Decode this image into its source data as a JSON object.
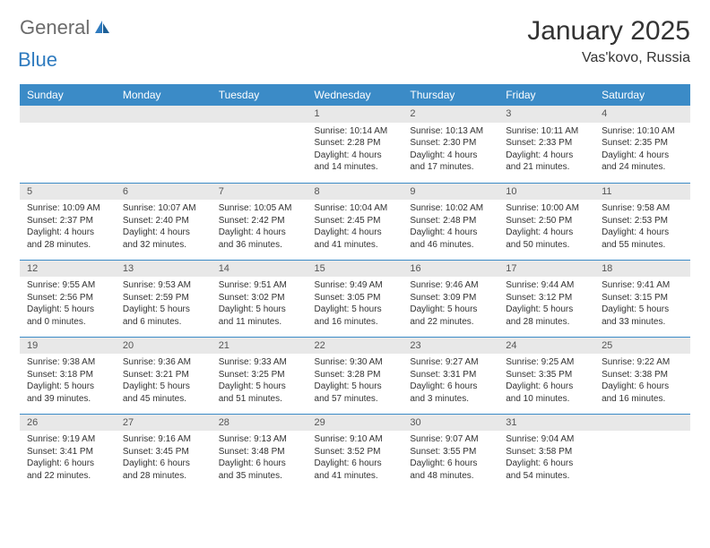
{
  "logo": {
    "word1": "General",
    "word2": "Blue"
  },
  "title": "January 2025",
  "location": "Vas'kovo, Russia",
  "colors": {
    "header_bg": "#3b8bc7",
    "header_text": "#ffffff",
    "daynum_bg": "#e8e8e8",
    "row_divider": "#3b8bc7",
    "text": "#333333",
    "logo_gray": "#6b6b6b",
    "logo_blue": "#2f7bbf"
  },
  "weekdays": [
    "Sunday",
    "Monday",
    "Tuesday",
    "Wednesday",
    "Thursday",
    "Friday",
    "Saturday"
  ],
  "weeks": [
    [
      null,
      null,
      null,
      {
        "n": "1",
        "sr": "Sunrise: 10:14 AM",
        "ss": "Sunset: 2:28 PM",
        "d1": "Daylight: 4 hours",
        "d2": "and 14 minutes."
      },
      {
        "n": "2",
        "sr": "Sunrise: 10:13 AM",
        "ss": "Sunset: 2:30 PM",
        "d1": "Daylight: 4 hours",
        "d2": "and 17 minutes."
      },
      {
        "n": "3",
        "sr": "Sunrise: 10:11 AM",
        "ss": "Sunset: 2:33 PM",
        "d1": "Daylight: 4 hours",
        "d2": "and 21 minutes."
      },
      {
        "n": "4",
        "sr": "Sunrise: 10:10 AM",
        "ss": "Sunset: 2:35 PM",
        "d1": "Daylight: 4 hours",
        "d2": "and 24 minutes."
      }
    ],
    [
      {
        "n": "5",
        "sr": "Sunrise: 10:09 AM",
        "ss": "Sunset: 2:37 PM",
        "d1": "Daylight: 4 hours",
        "d2": "and 28 minutes."
      },
      {
        "n": "6",
        "sr": "Sunrise: 10:07 AM",
        "ss": "Sunset: 2:40 PM",
        "d1": "Daylight: 4 hours",
        "d2": "and 32 minutes."
      },
      {
        "n": "7",
        "sr": "Sunrise: 10:05 AM",
        "ss": "Sunset: 2:42 PM",
        "d1": "Daylight: 4 hours",
        "d2": "and 36 minutes."
      },
      {
        "n": "8",
        "sr": "Sunrise: 10:04 AM",
        "ss": "Sunset: 2:45 PM",
        "d1": "Daylight: 4 hours",
        "d2": "and 41 minutes."
      },
      {
        "n": "9",
        "sr": "Sunrise: 10:02 AM",
        "ss": "Sunset: 2:48 PM",
        "d1": "Daylight: 4 hours",
        "d2": "and 46 minutes."
      },
      {
        "n": "10",
        "sr": "Sunrise: 10:00 AM",
        "ss": "Sunset: 2:50 PM",
        "d1": "Daylight: 4 hours",
        "d2": "and 50 minutes."
      },
      {
        "n": "11",
        "sr": "Sunrise: 9:58 AM",
        "ss": "Sunset: 2:53 PM",
        "d1": "Daylight: 4 hours",
        "d2": "and 55 minutes."
      }
    ],
    [
      {
        "n": "12",
        "sr": "Sunrise: 9:55 AM",
        "ss": "Sunset: 2:56 PM",
        "d1": "Daylight: 5 hours",
        "d2": "and 0 minutes."
      },
      {
        "n": "13",
        "sr": "Sunrise: 9:53 AM",
        "ss": "Sunset: 2:59 PM",
        "d1": "Daylight: 5 hours",
        "d2": "and 6 minutes."
      },
      {
        "n": "14",
        "sr": "Sunrise: 9:51 AM",
        "ss": "Sunset: 3:02 PM",
        "d1": "Daylight: 5 hours",
        "d2": "and 11 minutes."
      },
      {
        "n": "15",
        "sr": "Sunrise: 9:49 AM",
        "ss": "Sunset: 3:05 PM",
        "d1": "Daylight: 5 hours",
        "d2": "and 16 minutes."
      },
      {
        "n": "16",
        "sr": "Sunrise: 9:46 AM",
        "ss": "Sunset: 3:09 PM",
        "d1": "Daylight: 5 hours",
        "d2": "and 22 minutes."
      },
      {
        "n": "17",
        "sr": "Sunrise: 9:44 AM",
        "ss": "Sunset: 3:12 PM",
        "d1": "Daylight: 5 hours",
        "d2": "and 28 minutes."
      },
      {
        "n": "18",
        "sr": "Sunrise: 9:41 AM",
        "ss": "Sunset: 3:15 PM",
        "d1": "Daylight: 5 hours",
        "d2": "and 33 minutes."
      }
    ],
    [
      {
        "n": "19",
        "sr": "Sunrise: 9:38 AM",
        "ss": "Sunset: 3:18 PM",
        "d1": "Daylight: 5 hours",
        "d2": "and 39 minutes."
      },
      {
        "n": "20",
        "sr": "Sunrise: 9:36 AM",
        "ss": "Sunset: 3:21 PM",
        "d1": "Daylight: 5 hours",
        "d2": "and 45 minutes."
      },
      {
        "n": "21",
        "sr": "Sunrise: 9:33 AM",
        "ss": "Sunset: 3:25 PM",
        "d1": "Daylight: 5 hours",
        "d2": "and 51 minutes."
      },
      {
        "n": "22",
        "sr": "Sunrise: 9:30 AM",
        "ss": "Sunset: 3:28 PM",
        "d1": "Daylight: 5 hours",
        "d2": "and 57 minutes."
      },
      {
        "n": "23",
        "sr": "Sunrise: 9:27 AM",
        "ss": "Sunset: 3:31 PM",
        "d1": "Daylight: 6 hours",
        "d2": "and 3 minutes."
      },
      {
        "n": "24",
        "sr": "Sunrise: 9:25 AM",
        "ss": "Sunset: 3:35 PM",
        "d1": "Daylight: 6 hours",
        "d2": "and 10 minutes."
      },
      {
        "n": "25",
        "sr": "Sunrise: 9:22 AM",
        "ss": "Sunset: 3:38 PM",
        "d1": "Daylight: 6 hours",
        "d2": "and 16 minutes."
      }
    ],
    [
      {
        "n": "26",
        "sr": "Sunrise: 9:19 AM",
        "ss": "Sunset: 3:41 PM",
        "d1": "Daylight: 6 hours",
        "d2": "and 22 minutes."
      },
      {
        "n": "27",
        "sr": "Sunrise: 9:16 AM",
        "ss": "Sunset: 3:45 PM",
        "d1": "Daylight: 6 hours",
        "d2": "and 28 minutes."
      },
      {
        "n": "28",
        "sr": "Sunrise: 9:13 AM",
        "ss": "Sunset: 3:48 PM",
        "d1": "Daylight: 6 hours",
        "d2": "and 35 minutes."
      },
      {
        "n": "29",
        "sr": "Sunrise: 9:10 AM",
        "ss": "Sunset: 3:52 PM",
        "d1": "Daylight: 6 hours",
        "d2": "and 41 minutes."
      },
      {
        "n": "30",
        "sr": "Sunrise: 9:07 AM",
        "ss": "Sunset: 3:55 PM",
        "d1": "Daylight: 6 hours",
        "d2": "and 48 minutes."
      },
      {
        "n": "31",
        "sr": "Sunrise: 9:04 AM",
        "ss": "Sunset: 3:58 PM",
        "d1": "Daylight: 6 hours",
        "d2": "and 54 minutes."
      },
      null
    ]
  ]
}
